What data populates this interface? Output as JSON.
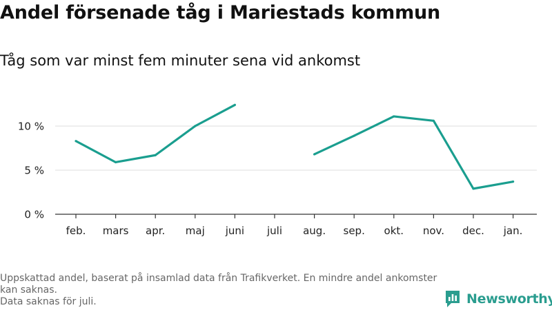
{
  "title": "Andel försenade tåg i Mariestads kommun",
  "subtitle": "Tåg som var minst fem minuter sena vid ankomst",
  "footnote": {
    "line1": "Uppskattad andel, baserat på insamlad data från Trafikverket. En mindre andel ankomster kan saknas.",
    "line2": "Data saknas för juli."
  },
  "brand": {
    "name": "Newsworthy",
    "icon": "newsworthy-logo-icon"
  },
  "colors": {
    "line": "#1a9e8f",
    "grid": "#dddddd",
    "axis": "#333333",
    "brand": "#2a9d8f"
  },
  "chart_data": {
    "type": "line",
    "categories": [
      "feb.",
      "mars",
      "apr.",
      "maj",
      "juni",
      "juli",
      "aug.",
      "sep.",
      "okt.",
      "nov.",
      "dec.",
      "jan."
    ],
    "series": [
      {
        "values": [
          8.3,
          5.9,
          6.7,
          10.0,
          12.4,
          null,
          6.8,
          8.9,
          11.1,
          10.6,
          2.9,
          3.7
        ]
      }
    ],
    "y_ticks": [
      {
        "value": 0,
        "label": "0 %"
      },
      {
        "value": 5,
        "label": "5 %"
      },
      {
        "value": 10,
        "label": "10 %"
      }
    ],
    "ylim": [
      0,
      13.5
    ],
    "grid": true,
    "legend": "none"
  }
}
